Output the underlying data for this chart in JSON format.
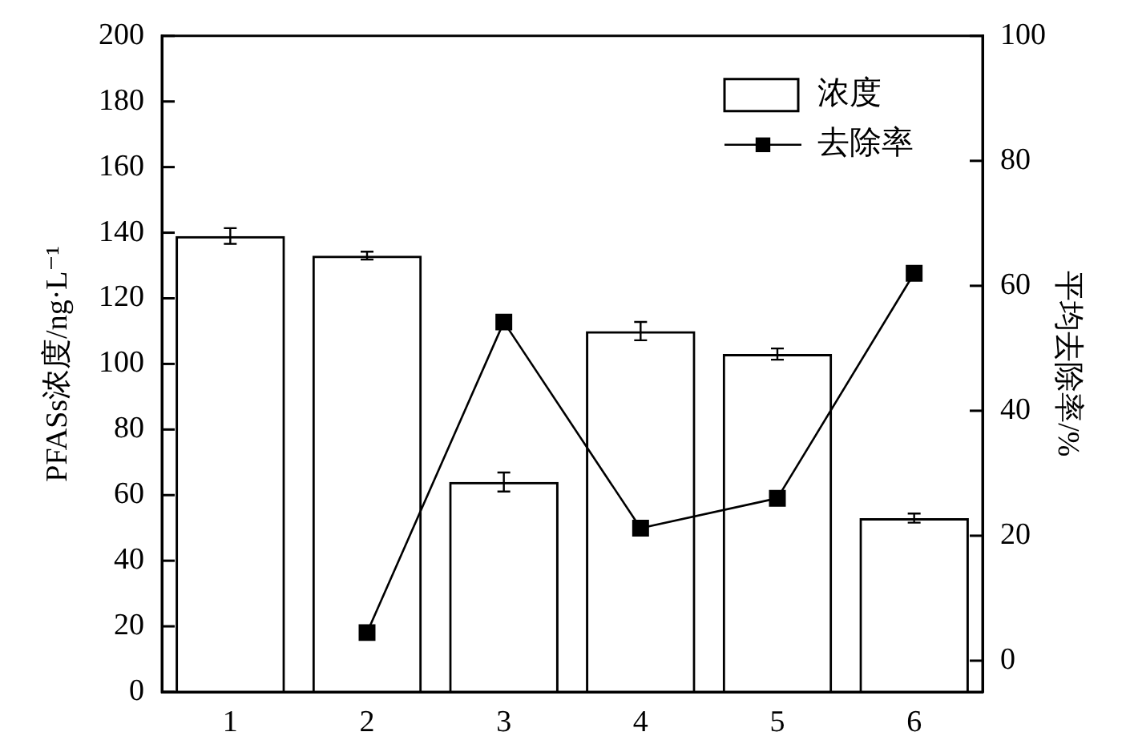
{
  "chart_data": {
    "type": "bar",
    "categories": [
      "1",
      "2",
      "3",
      "4",
      "5",
      "6"
    ],
    "series": [
      {
        "name": "浓度",
        "color": "#000000",
        "values": [
          139,
          133,
          64,
          110,
          103,
          53
        ],
        "errors": [
          2.4,
          1.2,
          2.9,
          2.8,
          1.7,
          1.4
        ]
      },
      {
        "name": "去除率",
        "type": "line",
        "axis": "y2",
        "color": "#000000",
        "values": [
          null,
          4.5,
          54.2,
          21.2,
          26,
          62
        ]
      }
    ],
    "ylabel": "PFASs浓度/ng·L⁻¹",
    "y2label": "平均去除率/%",
    "ylim": [
      0,
      200
    ],
    "yticks": [
      0,
      20,
      40,
      60,
      80,
      100,
      120,
      140,
      160,
      180,
      200
    ],
    "y2lim": [
      -5,
      100
    ],
    "y2ticks": [
      0,
      20,
      40,
      60,
      80,
      100
    ],
    "legend": "top right",
    "marker": "square"
  }
}
